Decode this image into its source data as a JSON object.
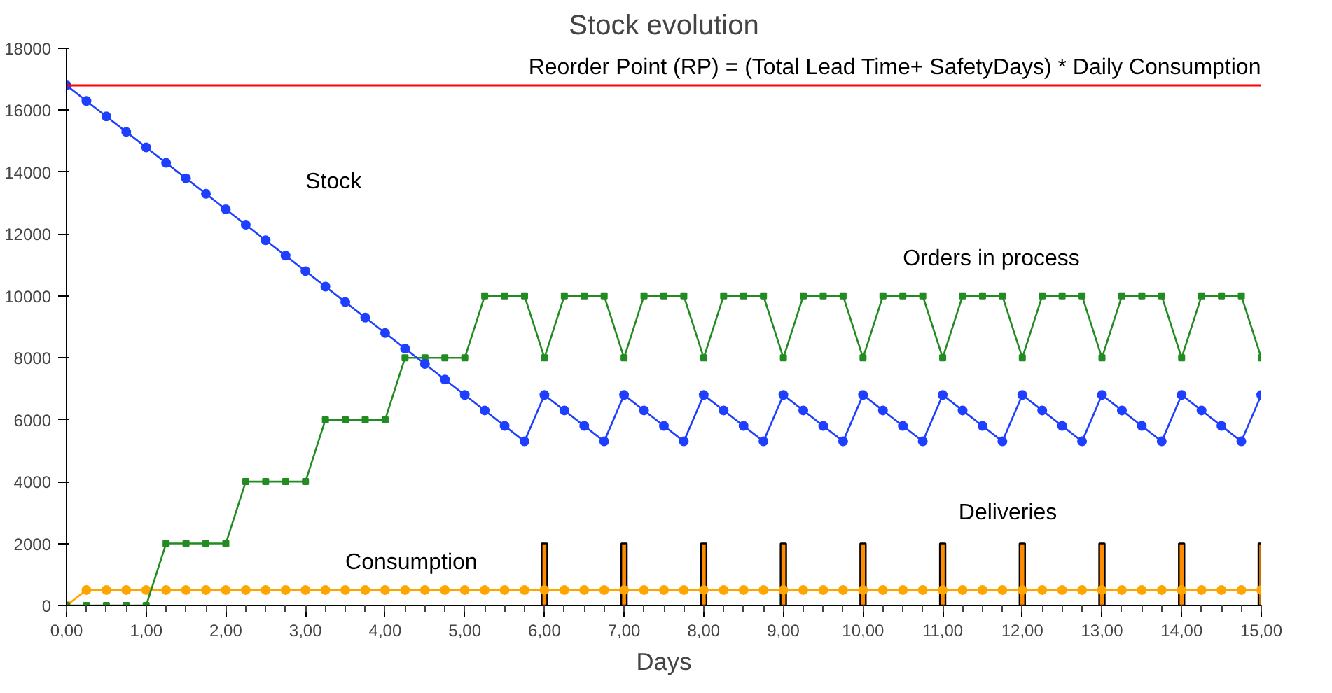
{
  "chart_data": {
    "type": "line",
    "title": "Stock evolution",
    "xlabel": "Days",
    "x": [
      0,
      0.25,
      0.5,
      0.75,
      1,
      1.25,
      1.5,
      1.75,
      2,
      2.25,
      2.5,
      2.75,
      3,
      3.25,
      3.5,
      3.75,
      4,
      4.25,
      4.5,
      4.75,
      5,
      5.25,
      5.5,
      5.75,
      6,
      6.25,
      6.5,
      6.75,
      7,
      7.25,
      7.5,
      7.75,
      8,
      8.25,
      8.5,
      8.75,
      9,
      9.25,
      9.5,
      9.75,
      10,
      10.25,
      10.5,
      10.75,
      11,
      11.25,
      11.5,
      11.75,
      12,
      12.25,
      12.5,
      12.75,
      13,
      13.25,
      13.5,
      13.75,
      14,
      14.25,
      14.5,
      14.75,
      15
    ],
    "series": [
      {
        "name": "Deliveries",
        "type": "bar",
        "color": "#ff8c00",
        "values": [
          null,
          null,
          null,
          null,
          null,
          null,
          null,
          null,
          null,
          null,
          null,
          null,
          null,
          null,
          null,
          null,
          null,
          null,
          null,
          null,
          null,
          null,
          null,
          null,
          2000,
          null,
          null,
          null,
          2000,
          null,
          null,
          null,
          2000,
          null,
          null,
          null,
          2000,
          null,
          null,
          null,
          2000,
          null,
          null,
          null,
          2000,
          null,
          null,
          null,
          2000,
          null,
          null,
          null,
          2000,
          null,
          null,
          null,
          2000,
          null,
          null,
          null,
          2000
        ]
      },
      {
        "name": "Consumption",
        "marker": "circle",
        "color": "#ffa500",
        "values": [
          0,
          500,
          500,
          500,
          500,
          500,
          500,
          500,
          500,
          500,
          500,
          500,
          500,
          500,
          500,
          500,
          500,
          500,
          500,
          500,
          500,
          500,
          500,
          500,
          500,
          500,
          500,
          500,
          500,
          500,
          500,
          500,
          500,
          500,
          500,
          500,
          500,
          500,
          500,
          500,
          500,
          500,
          500,
          500,
          500,
          500,
          500,
          500,
          500,
          500,
          500,
          500,
          500,
          500,
          500,
          500,
          500,
          500,
          500,
          500,
          500
        ]
      },
      {
        "name": "Orders in process",
        "marker": "square",
        "color": "#228b22",
        "values": [
          0,
          0,
          0,
          0,
          0,
          2000,
          2000,
          2000,
          2000,
          4000,
          4000,
          4000,
          4000,
          6000,
          6000,
          6000,
          6000,
          8000,
          8000,
          8000,
          8000,
          10000,
          10000,
          10000,
          8000,
          10000,
          10000,
          10000,
          8000,
          10000,
          10000,
          10000,
          8000,
          10000,
          10000,
          10000,
          8000,
          10000,
          10000,
          10000,
          8000,
          10000,
          10000,
          10000,
          8000,
          10000,
          10000,
          10000,
          8000,
          10000,
          10000,
          10000,
          8000,
          10000,
          10000,
          10000,
          8000,
          10000,
          10000,
          10000,
          8000
        ]
      },
      {
        "name": "Stock",
        "marker": "circle",
        "color": "#1f3fff",
        "values": [
          16800,
          16300,
          15800,
          15300,
          14800,
          14300,
          13800,
          13300,
          12800,
          12300,
          11800,
          11300,
          10800,
          10300,
          9800,
          9300,
          8800,
          8300,
          7800,
          7300,
          6800,
          6300,
          5800,
          5300,
          6800,
          6300,
          5800,
          5300,
          6800,
          6300,
          5800,
          5300,
          6800,
          6300,
          5800,
          5300,
          6800,
          6300,
          5800,
          5300,
          6800,
          6300,
          5800,
          5300,
          6800,
          6300,
          5800,
          5300,
          6800,
          6300,
          5800,
          5300,
          6800,
          6300,
          5800,
          5300,
          6800,
          6300,
          5800,
          5300,
          6800
        ]
      }
    ],
    "ref_lines": [
      {
        "axis": "y",
        "value": 16800,
        "color": "#ff0000",
        "label": "Reorder Point (RP) = (Total Lead Time+ SafetyDays) * Daily Consumption"
      }
    ],
    "xlim": [
      0,
      15
    ],
    "xticks": [
      {
        "value": 0,
        "label": "0,00"
      },
      {
        "value": 1,
        "label": "1,00"
      },
      {
        "value": 2,
        "label": "2,00"
      },
      {
        "value": 3,
        "label": "3,00"
      },
      {
        "value": 4,
        "label": "4,00"
      },
      {
        "value": 5,
        "label": "5,00"
      },
      {
        "value": 6,
        "label": "6,00"
      },
      {
        "value": 7,
        "label": "7,00"
      },
      {
        "value": 8,
        "label": "8,00"
      },
      {
        "value": 9,
        "label": "9,00"
      },
      {
        "value": 10,
        "label": "10,00"
      },
      {
        "value": 11,
        "label": "11,00"
      },
      {
        "value": 12,
        "label": "12,00"
      },
      {
        "value": 13,
        "label": "13,00"
      },
      {
        "value": 14,
        "label": "14,00"
      },
      {
        "value": 15,
        "label": "15,00"
      }
    ],
    "ylim": [
      0,
      18000
    ],
    "yticks": [
      0,
      2000,
      4000,
      6000,
      8000,
      10000,
      12000,
      14000,
      16000,
      18000
    ],
    "grid": false,
    "legend": false
  }
}
